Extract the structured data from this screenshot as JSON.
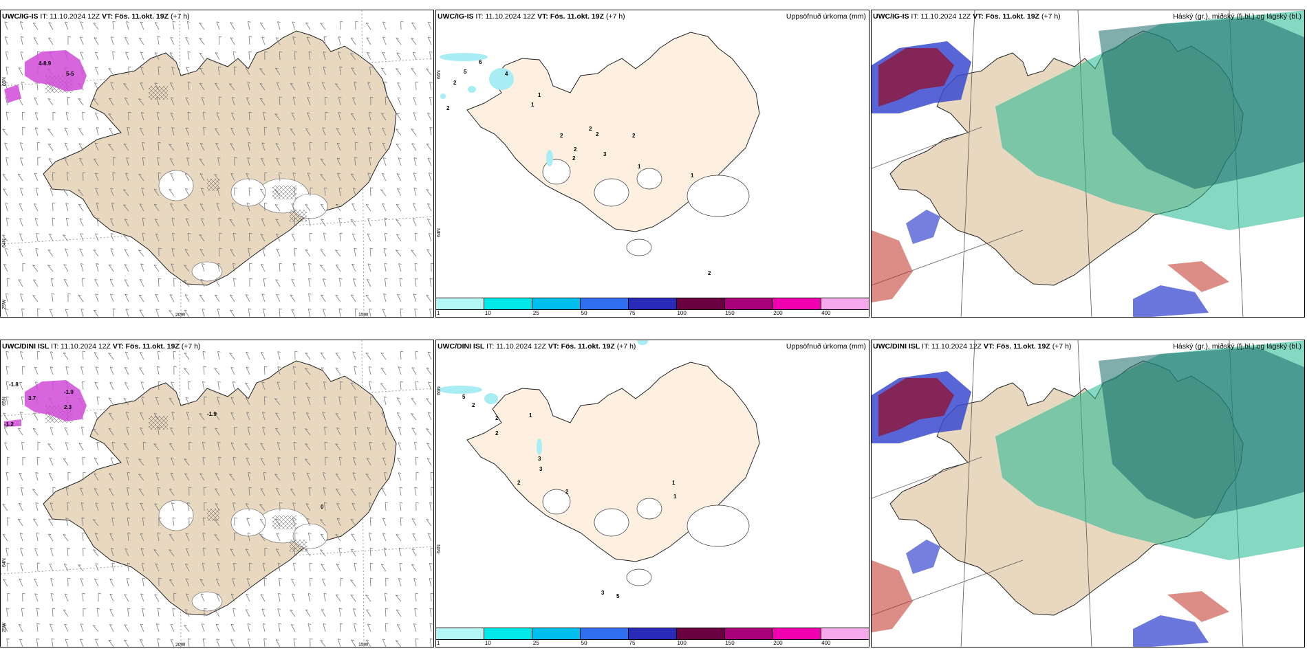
{
  "panels": [
    {
      "id": "ig-wind",
      "model": "UWC/IG-IS",
      "it": "IT: 11.10.2024 12Z",
      "vt_label": "VT:",
      "vt": "Fös. 11.okt. 19Z",
      "lead": "(+7 h)",
      "right_title": "",
      "coords": {
        "lat_a": "65N",
        "lat_b": "64N",
        "lon_w": "25W",
        "lon_a": "20W",
        "lon_b": "15W"
      },
      "labels": [
        "4-8.9",
        "5-5"
      ]
    },
    {
      "id": "ig-precip",
      "model": "UWC/IG-IS",
      "it": "IT: 11.10.2024 12Z",
      "vt_label": "VT:",
      "vt": "Fös. 11.okt. 19Z",
      "lead": "(+7 h)",
      "right_title": "Uppsöfnuð úrkoma (mm)",
      "coords": {
        "lat_a": "66N",
        "lat_b": "64N"
      },
      "labels": [
        "6",
        "5",
        "2",
        "2",
        "4",
        "1",
        "1",
        "2",
        "2",
        "2",
        "2",
        "2",
        "3",
        "2",
        "1",
        "1",
        "2"
      ]
    },
    {
      "id": "ig-cloud",
      "model": "UWC/IG-IS",
      "it": "IT: 11.10.2024 12Z",
      "vt_label": "VT:",
      "vt": "Fös. 11.okt. 19Z",
      "lead": "(+7 h)",
      "right_title": "Háský (gr.), miðský (fj.bl.) og lágský (bl.)",
      "coords": {},
      "labels": []
    },
    {
      "id": "dini-wind",
      "model": "UWC/DINI ISL",
      "it": "IT: 11.10.2024 12Z",
      "vt_label": "VT:",
      "vt": "Fös. 11.okt. 19Z",
      "lead": "(+7 h)",
      "right_title": "",
      "coords": {
        "lat_a": "65N",
        "lat_b": "64N",
        "lon_w": "25W",
        "lon_a": "20W",
        "lon_b": "15W"
      },
      "labels": [
        "-1.8",
        "-1.0",
        "2.3",
        "-1.2",
        "3.7",
        "-1.9",
        "0"
      ]
    },
    {
      "id": "dini-precip",
      "model": "UWC/DINI ISL",
      "it": "IT: 11.10.2024 12Z",
      "vt_label": "VT:",
      "vt": "Fös. 11.okt. 19Z",
      "lead": "(+7 h)",
      "right_title": "Uppsöfnuð úrkoma (mm)",
      "coords": {
        "lat_a": "66N",
        "lat_b": "64N"
      },
      "labels": [
        "5",
        "2",
        "2",
        "2",
        "1",
        "3",
        "3",
        "2",
        "2",
        "1",
        "1",
        "3",
        "5"
      ]
    },
    {
      "id": "dini-cloud",
      "model": "UWC/DINI ISL",
      "it": "IT: 11.10.2024 12Z",
      "vt_label": "VT:",
      "vt": "Fös. 11.okt. 19Z",
      "lead": "(+7 h)",
      "right_title": "Háský (gr.), miðský (fj.bl.) og lágský (bl.)",
      "coords": {},
      "labels": []
    }
  ],
  "legend": {
    "ticks": [
      "1",
      "10",
      "25",
      "50",
      "75",
      "100",
      "150",
      "200",
      "400"
    ],
    "colors": [
      "#b3f7f7",
      "#00e8e8",
      "#00c0f0",
      "#3070f0",
      "#2a2ab8",
      "#6a0040",
      "#a8007a",
      "#f000b0",
      "#f5a8ec"
    ]
  },
  "colors": {
    "land": "#e8d8c0",
    "land_light": "#fdf0e0",
    "precip_light": "#a8ecf4",
    "precip_mag": "#d04ad8",
    "cloud_high": "#8a1e4a",
    "cloud_mid": "#3a4ad0",
    "cloud_low": "#20b890"
  }
}
